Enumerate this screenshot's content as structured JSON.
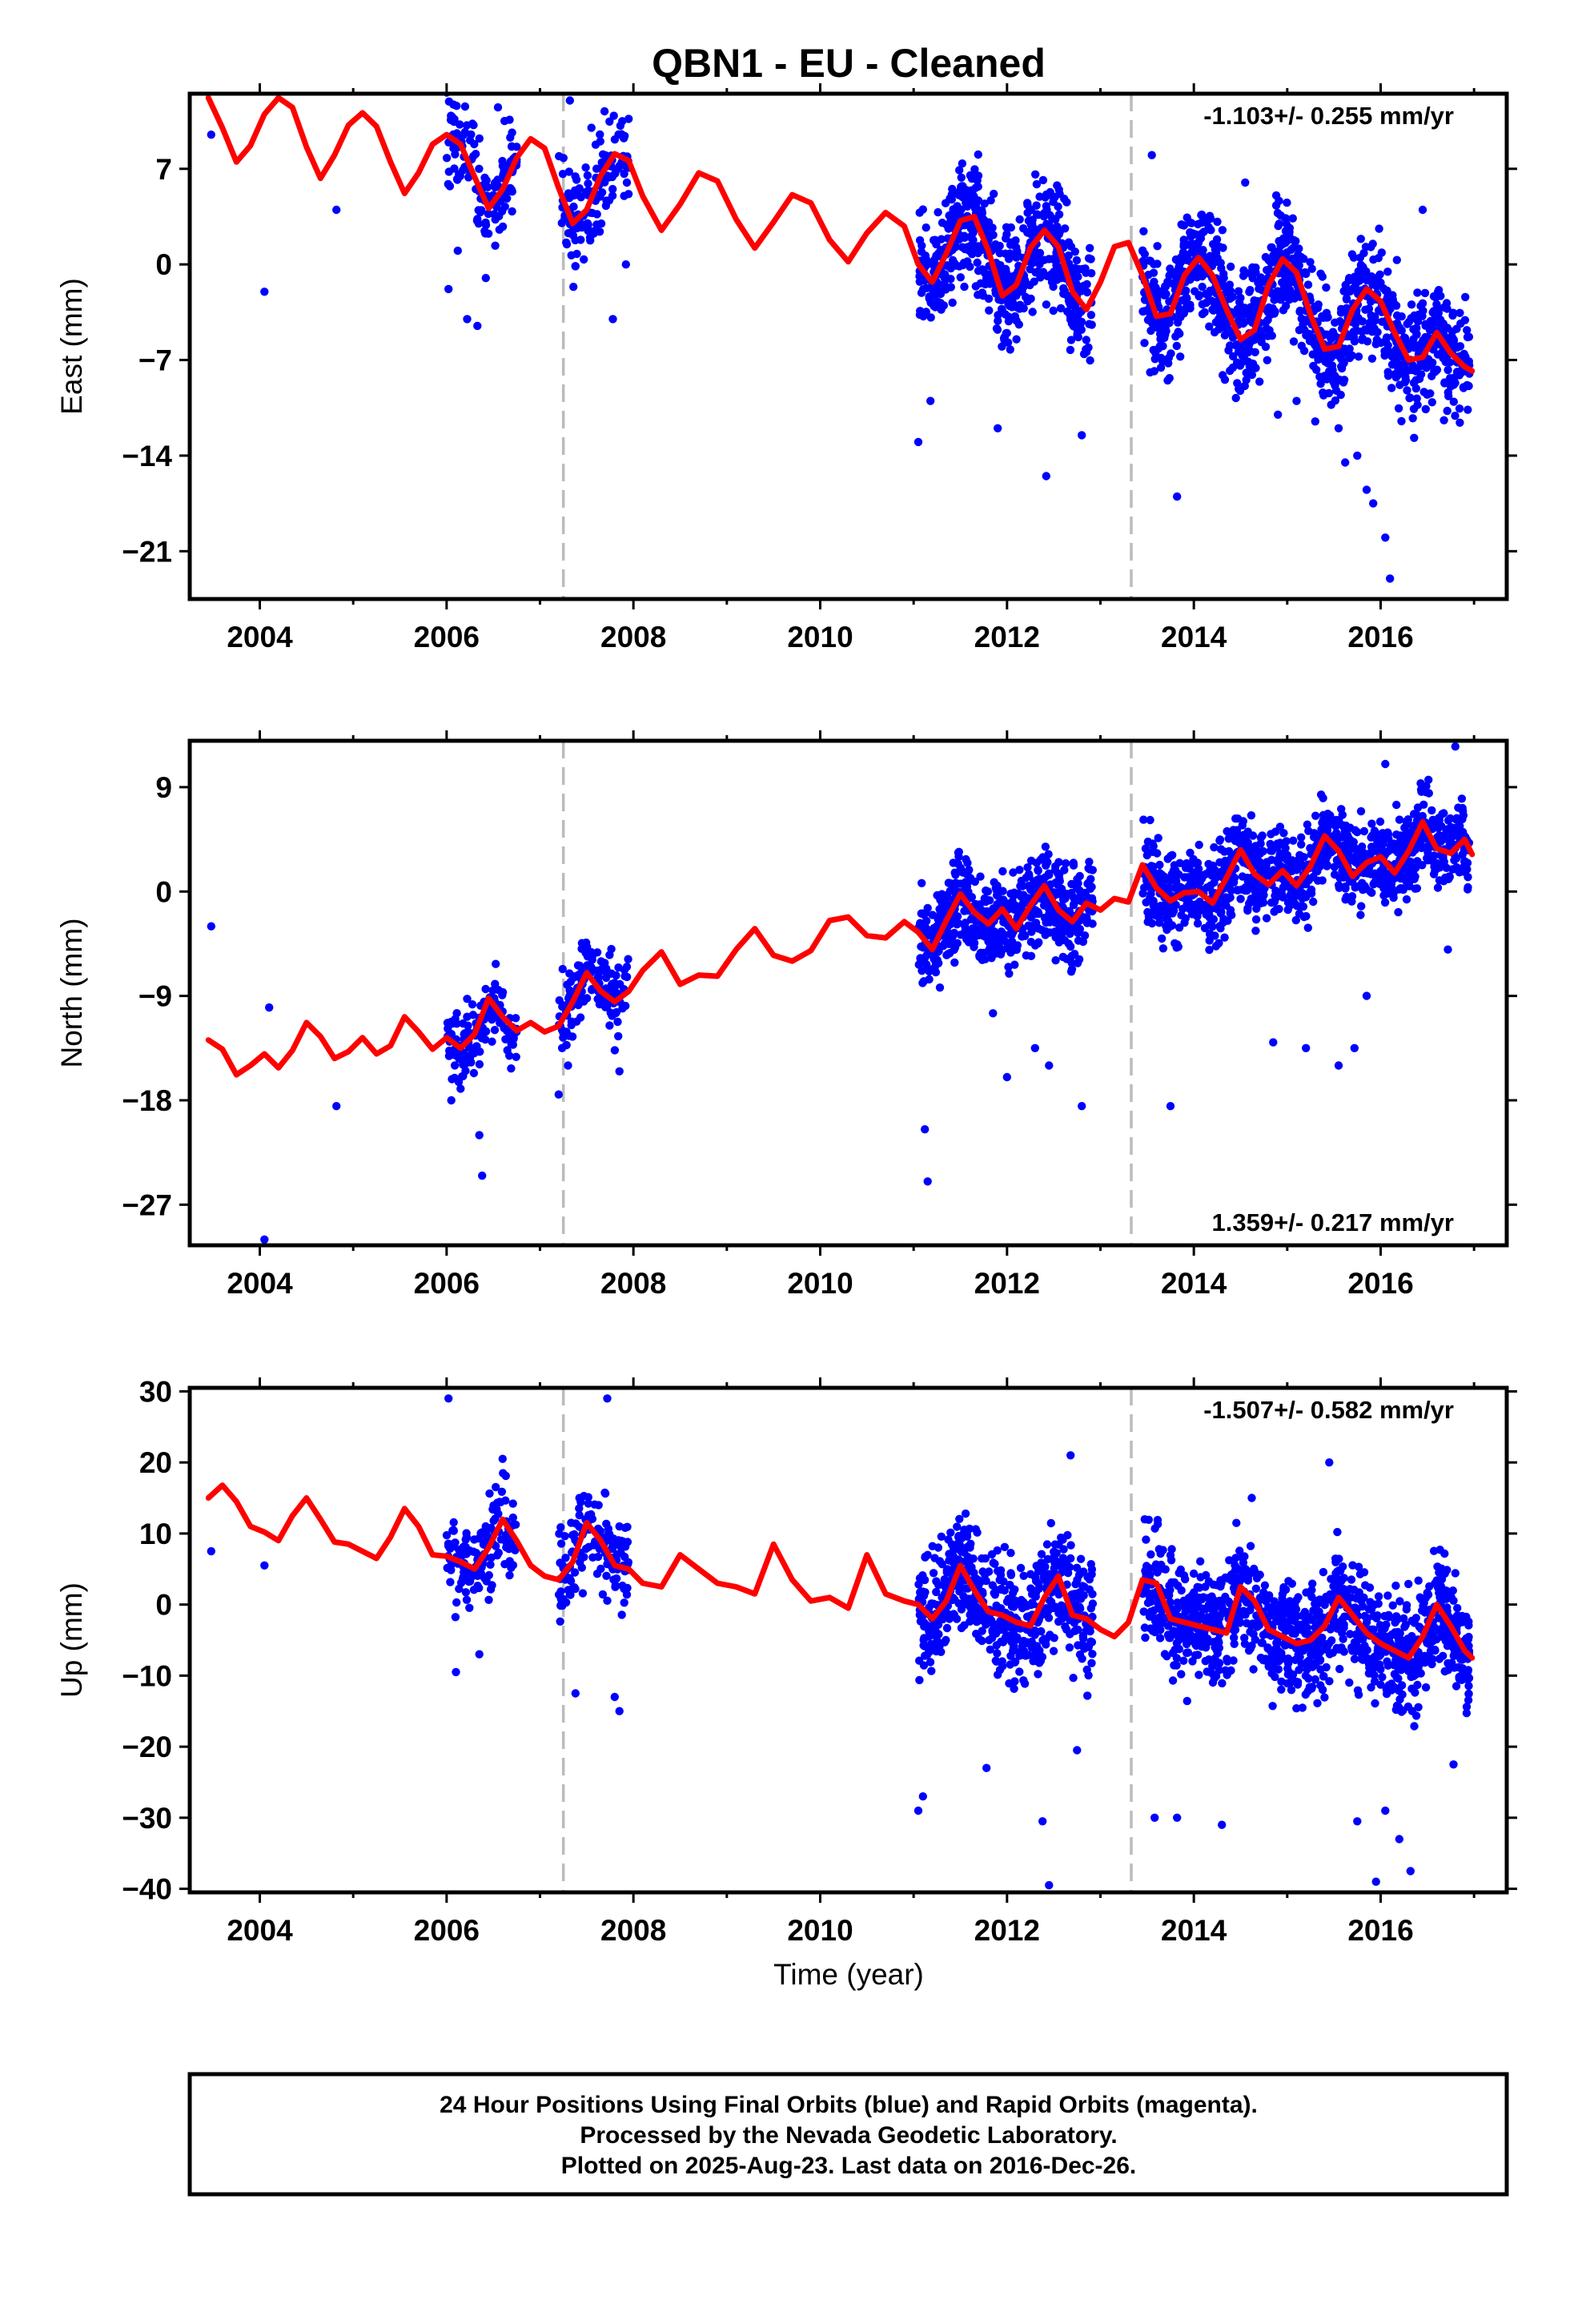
{
  "title": "QBN1  - EU - Cleaned",
  "xlabel": "Time (year)",
  "colors": {
    "points": "#0000ff",
    "model": "#ff0000",
    "steps": "#bbbbbb",
    "frame": "#000000"
  },
  "caption": {
    "line1": "24 Hour Positions Using Final Orbits (blue) and Rapid Orbits (magenta).",
    "line2": "Processed by the Nevada Geodetic Laboratory.",
    "line3": "Plotted on 2025-Aug-23. Last data on 2016-Dec-26."
  },
  "chart_data": [
    {
      "type": "scatter",
      "panel": "east",
      "ylabel": "East (mm)",
      "rate_text": "-1.103+/- 0.255 mm/yr",
      "rate_position": "top-right",
      "xlim": [
        2003.25,
        2017.35
      ],
      "ylim": [
        -24.5,
        12.5
      ],
      "x_ticks": [
        2004,
        2006,
        2008,
        2010,
        2012,
        2014,
        2016
      ],
      "x_tick_labels": [
        "2004",
        "2006",
        "2008",
        "2010",
        "2012",
        "2014",
        "2016"
      ],
      "y_ticks": [
        7,
        0,
        -7,
        -14,
        -21
      ],
      "y_tick_labels": [
        "7",
        "0",
        "−7",
        "−14",
        "−21"
      ],
      "step_epochs": [
        2007.25,
        2013.33
      ],
      "model": {
        "x": [
          2003.45,
          2003.6,
          2003.75,
          2003.9,
          2004.05,
          2004.2,
          2004.35,
          2004.5,
          2004.65,
          2004.8,
          2004.95,
          2005.1,
          2005.25,
          2005.4,
          2005.55,
          2005.7,
          2005.85,
          2006.0,
          2006.15,
          2006.3,
          2006.45,
          2006.6,
          2006.75,
          2006.9,
          2007.05,
          2007.2,
          2007.35,
          2007.5,
          2007.65,
          2007.8,
          2007.95,
          2008.1,
          2008.3,
          2008.5,
          2008.7,
          2008.9,
          2009.1,
          2009.3,
          2009.5,
          2009.7,
          2009.9,
          2010.1,
          2010.3,
          2010.5,
          2010.7,
          2010.9,
          2011.05,
          2011.2,
          2011.35,
          2011.5,
          2011.65,
          2011.8,
          2011.95,
          2012.1,
          2012.25,
          2012.4,
          2012.55,
          2012.7,
          2012.85,
          2013.0,
          2013.15,
          2013.3,
          2013.45,
          2013.6,
          2013.75,
          2013.9,
          2014.05,
          2014.2,
          2014.35,
          2014.5,
          2014.65,
          2014.8,
          2014.95,
          2015.1,
          2015.25,
          2015.4,
          2015.55,
          2015.7,
          2015.85,
          2016.0,
          2016.15,
          2016.3,
          2016.45,
          2016.6,
          2016.75,
          2016.9,
          2016.98
        ],
        "y": [
          12.2,
          10.0,
          7.5,
          8.7,
          11.0,
          12.2,
          11.5,
          8.6,
          6.3,
          8.0,
          10.2,
          11.1,
          10.1,
          7.5,
          5.2,
          6.7,
          8.8,
          9.5,
          8.8,
          6.4,
          4.1,
          5.5,
          7.8,
          9.2,
          8.5,
          5.6,
          3.0,
          4.0,
          6.5,
          8.1,
          7.6,
          5.0,
          2.5,
          4.4,
          6.7,
          6.1,
          3.3,
          1.2,
          3.1,
          5.1,
          4.5,
          1.8,
          0.2,
          2.3,
          3.8,
          2.8,
          0.0,
          -1.3,
          0.8,
          3.2,
          3.5,
          1.0,
          -2.3,
          -1.5,
          1.2,
          2.5,
          1.3,
          -2.0,
          -3.3,
          -1.3,
          1.3,
          1.6,
          -0.8,
          -3.8,
          -3.6,
          -0.8,
          0.5,
          -0.8,
          -3.3,
          -5.5,
          -4.8,
          -1.5,
          0.4,
          -0.6,
          -3.7,
          -6.2,
          -6.0,
          -3.3,
          -1.8,
          -2.7,
          -5.0,
          -7.0,
          -6.8,
          -5.0,
          -6.5,
          -7.5,
          -7.8
        ]
      },
      "outliers": {
        "x": [
          2003.48,
          2004.05,
          2004.82,
          2006.02,
          2006.12,
          2006.22,
          2006.33,
          2006.42,
          2006.55,
          2006.62,
          2007.32,
          2007.55,
          2007.78,
          2007.92,
          2011.05,
          2011.18,
          2011.9,
          2012.42,
          2012.8,
          2013.55,
          2013.72,
          2013.82,
          2014.55,
          2014.9,
          2015.1,
          2015.3,
          2015.55,
          2015.62,
          2015.75,
          2015.85,
          2015.92,
          2016.05,
          2016.1,
          2016.45
        ],
        "y": [
          9.5,
          -2.0,
          4.0,
          -1.8,
          1.0,
          -4.0,
          -4.5,
          -1.0,
          11.5,
          10.5,
          12.0,
          10.0,
          -4.0,
          0.0,
          -13.0,
          -10.0,
          -12.0,
          -15.5,
          -12.5,
          8.0,
          -8.5,
          -17.0,
          6.0,
          -11.0,
          -10.0,
          -11.5,
          -12.0,
          -14.5,
          -14.0,
          -16.5,
          -17.5,
          -20.0,
          -23.0,
          4.0
        ]
      },
      "clusters": [
        {
          "x_range": [
            2006.0,
            2006.75
          ],
          "center": "model",
          "spread": 2.2,
          "n": 140
        },
        {
          "x_range": [
            2007.2,
            2007.95
          ],
          "center": "model",
          "spread": 2.2,
          "n": 140
        },
        {
          "x_range": [
            2011.05,
            2012.92
          ],
          "center": "model",
          "spread": 2.6,
          "n": 620
        },
        {
          "x_range": [
            2013.45,
            2016.95
          ],
          "center": "model",
          "spread": 2.7,
          "n": 1100
        }
      ]
    },
    {
      "type": "scatter",
      "panel": "north",
      "ylabel": "North (mm)",
      "rate_text": "1.359+/- 0.217 mm/yr",
      "rate_position": "bottom-right",
      "xlim": [
        2003.25,
        2017.35
      ],
      "ylim": [
        -30.5,
        13.0
      ],
      "x_ticks": [
        2004,
        2006,
        2008,
        2010,
        2012,
        2014,
        2016
      ],
      "x_tick_labels": [
        "2004",
        "2006",
        "2008",
        "2010",
        "2012",
        "2014",
        "2016"
      ],
      "y_ticks": [
        9,
        0,
        -9,
        -18,
        -27
      ],
      "y_tick_labels": [
        "9",
        "0",
        "−9",
        "−18",
        "−27"
      ],
      "step_epochs": [
        2007.25,
        2013.33
      ],
      "model": {
        "x": [
          2003.45,
          2003.6,
          2003.75,
          2003.9,
          2004.05,
          2004.2,
          2004.35,
          2004.5,
          2004.65,
          2004.8,
          2004.95,
          2005.1,
          2005.25,
          2005.4,
          2005.55,
          2005.7,
          2005.85,
          2006.0,
          2006.15,
          2006.3,
          2006.45,
          2006.6,
          2006.75,
          2006.9,
          2007.05,
          2007.2,
          2007.35,
          2007.5,
          2007.65,
          2007.8,
          2007.95,
          2008.1,
          2008.3,
          2008.5,
          2008.7,
          2008.9,
          2009.1,
          2009.3,
          2009.5,
          2009.7,
          2009.9,
          2010.1,
          2010.3,
          2010.5,
          2010.7,
          2010.9,
          2011.05,
          2011.2,
          2011.35,
          2011.5,
          2011.65,
          2011.8,
          2011.95,
          2012.1,
          2012.25,
          2012.4,
          2012.55,
          2012.7,
          2012.85,
          2013.0,
          2013.15,
          2013.3,
          2013.45,
          2013.6,
          2013.75,
          2013.9,
          2014.05,
          2014.2,
          2014.35,
          2014.5,
          2014.65,
          2014.8,
          2014.95,
          2015.1,
          2015.25,
          2015.4,
          2015.55,
          2015.7,
          2015.85,
          2016.0,
          2016.15,
          2016.3,
          2016.45,
          2016.6,
          2016.75,
          2016.9,
          2016.98
        ],
        "y": [
          -12.8,
          -13.6,
          -15.8,
          -15.0,
          -14.0,
          -15.2,
          -13.7,
          -11.3,
          -12.5,
          -14.4,
          -13.8,
          -12.6,
          -14.0,
          -13.3,
          -10.8,
          -12.1,
          -13.6,
          -12.6,
          -13.5,
          -12.3,
          -9.2,
          -10.8,
          -12.0,
          -11.3,
          -12.1,
          -11.6,
          -9.5,
          -7.0,
          -8.6,
          -9.5,
          -8.6,
          -6.8,
          -5.2,
          -8.0,
          -7.2,
          -7.3,
          -5.0,
          -3.2,
          -5.5,
          -6.0,
          -5.1,
          -2.5,
          -2.2,
          -3.8,
          -4.0,
          -2.6,
          -3.5,
          -5.0,
          -2.5,
          -0.2,
          -1.8,
          -2.8,
          -1.5,
          -3.2,
          -1.2,
          0.5,
          -1.6,
          -2.6,
          -1.0,
          -1.6,
          -0.6,
          -0.9,
          2.3,
          0.3,
          -0.8,
          -0.1,
          0.0,
          -1.0,
          1.2,
          3.6,
          1.5,
          0.6,
          1.8,
          0.5,
          2.2,
          4.8,
          3.5,
          1.3,
          2.5,
          3.0,
          1.6,
          3.5,
          6.0,
          3.7,
          3.3,
          4.5,
          3.2
        ]
      },
      "outliers": {
        "x": [
          2003.48,
          2004.05,
          2004.1,
          2004.82,
          2006.05,
          2006.15,
          2006.35,
          2006.38,
          2007.2,
          2007.3,
          2007.85,
          2011.12,
          2011.15,
          2011.85,
          2012.0,
          2012.3,
          2012.45,
          2012.8,
          2013.75,
          2014.85,
          2015.2,
          2015.55,
          2015.72,
          2015.85,
          2016.05,
          2016.72,
          2016.8
        ],
        "y": [
          -3.0,
          -30.0,
          -10.0,
          -18.5,
          -18.0,
          -17.0,
          -21.0,
          -24.5,
          -17.5,
          -15.0,
          -15.5,
          -20.5,
          -25.0,
          -10.5,
          -16.0,
          -13.5,
          -15.0,
          -18.5,
          -18.5,
          -13.0,
          -13.5,
          -15.0,
          -13.5,
          -9.0,
          11.0,
          -5.0,
          12.5
        ]
      },
      "clusters": [
        {
          "x_range": [
            2006.0,
            2006.75
          ],
          "center": "model",
          "spread": 2.0,
          "n": 140
        },
        {
          "x_range": [
            2007.2,
            2007.95
          ],
          "center": "model",
          "spread": 2.1,
          "n": 140
        },
        {
          "x_range": [
            2011.05,
            2012.92
          ],
          "center": "model",
          "spread": 2.4,
          "n": 620
        },
        {
          "x_range": [
            2013.45,
            2016.95
          ],
          "center": "model",
          "spread": 2.4,
          "n": 1100
        }
      ]
    },
    {
      "type": "scatter",
      "panel": "up",
      "ylabel": "Up (mm)",
      "rate_text": "-1.507+/- 0.582 mm/yr",
      "rate_position": "top-right",
      "xlim": [
        2003.25,
        2017.35
      ],
      "ylim": [
        -40.5,
        30.5
      ],
      "x_ticks": [
        2004,
        2006,
        2008,
        2010,
        2012,
        2014,
        2016
      ],
      "x_tick_labels": [
        "2004",
        "2006",
        "2008",
        "2010",
        "2012",
        "2014",
        "2016"
      ],
      "y_ticks": [
        30,
        20,
        10,
        0,
        -10,
        -20,
        -30,
        -40
      ],
      "y_tick_labels": [
        "30",
        "20",
        "10",
        "0",
        "−10",
        "−20",
        "−30",
        "−40"
      ],
      "step_epochs": [
        2007.25,
        2013.33
      ],
      "model": {
        "x": [
          2003.45,
          2003.6,
          2003.75,
          2003.9,
          2004.05,
          2004.2,
          2004.35,
          2004.5,
          2004.65,
          2004.8,
          2004.95,
          2005.1,
          2005.25,
          2005.4,
          2005.55,
          2005.7,
          2005.85,
          2006.0,
          2006.15,
          2006.3,
          2006.45,
          2006.6,
          2006.75,
          2006.9,
          2007.05,
          2007.2,
          2007.35,
          2007.5,
          2007.65,
          2007.8,
          2007.95,
          2008.1,
          2008.3,
          2008.5,
          2008.7,
          2008.9,
          2009.1,
          2009.3,
          2009.5,
          2009.7,
          2009.9,
          2010.1,
          2010.3,
          2010.5,
          2010.7,
          2010.9,
          2011.05,
          2011.2,
          2011.35,
          2011.5,
          2011.65,
          2011.8,
          2011.95,
          2012.1,
          2012.25,
          2012.4,
          2012.55,
          2012.7,
          2012.85,
          2013.0,
          2013.15,
          2013.3,
          2013.45,
          2013.6,
          2013.75,
          2013.9,
          2014.05,
          2014.2,
          2014.35,
          2014.5,
          2014.65,
          2014.8,
          2014.95,
          2015.1,
          2015.25,
          2015.4,
          2015.55,
          2015.7,
          2015.85,
          2016.0,
          2016.15,
          2016.3,
          2016.45,
          2016.6,
          2016.75,
          2016.9,
          2016.98
        ],
        "y": [
          15.0,
          16.8,
          14.5,
          11.0,
          10.2,
          9.0,
          12.5,
          15.0,
          12.0,
          8.8,
          8.5,
          7.5,
          6.5,
          9.5,
          13.5,
          11.0,
          7.0,
          6.8,
          6.0,
          5.0,
          8.0,
          12.0,
          9.0,
          5.5,
          4.0,
          3.5,
          6.0,
          11.5,
          9.0,
          5.5,
          5.0,
          3.0,
          2.5,
          7.0,
          5.0,
          3.0,
          2.5,
          1.5,
          8.5,
          3.5,
          0.5,
          1.0,
          -0.5,
          7.0,
          1.5,
          0.5,
          0.0,
          -2.0,
          0.5,
          5.5,
          2.0,
          -1.0,
          -1.5,
          -2.5,
          -3.0,
          1.0,
          4.0,
          -1.5,
          -2.0,
          -3.5,
          -4.5,
          -2.5,
          3.5,
          3.0,
          -2.0,
          -2.5,
          -3.0,
          -3.5,
          -4.0,
          2.5,
          0.5,
          -3.5,
          -4.5,
          -5.5,
          -5.0,
          -3.0,
          1.0,
          -1.5,
          -4.0,
          -5.5,
          -6.5,
          -7.5,
          -4.5,
          0.0,
          -3.0,
          -6.5,
          -7.5
        ]
      },
      "outliers": {
        "x": [
          2003.48,
          2004.05,
          2006.02,
          2006.1,
          2006.35,
          2006.6,
          2007.38,
          2007.72,
          2007.8,
          2007.85,
          2011.05,
          2011.1,
          2011.78,
          2012.38,
          2012.45,
          2012.68,
          2012.75,
          2013.58,
          2013.82,
          2014.3,
          2014.62,
          2015.45,
          2015.75,
          2015.95,
          2016.05,
          2016.2,
          2016.32,
          2016.78
        ],
        "y": [
          7.5,
          5.5,
          29.0,
          -9.5,
          -7.0,
          20.5,
          -12.5,
          29.0,
          -13.0,
          -15.0,
          -29.0,
          -27.0,
          -23.0,
          -30.5,
          -39.5,
          21.0,
          -20.5,
          -30.0,
          -30.0,
          -31.0,
          15.0,
          20.0,
          -30.5,
          -39.0,
          -29.0,
          -33.0,
          -37.5,
          -22.5
        ]
      },
      "clusters": [
        {
          "x_range": [
            2006.0,
            2006.75
          ],
          "center": "model",
          "spread": 4.0,
          "n": 140
        },
        {
          "x_range": [
            2007.2,
            2007.95
          ],
          "center": "model",
          "spread": 4.2,
          "n": 140
        },
        {
          "x_range": [
            2011.05,
            2012.92
          ],
          "center": "model",
          "spread": 5.0,
          "n": 620
        },
        {
          "x_range": [
            2013.45,
            2016.95
          ],
          "center": "model",
          "spread": 5.0,
          "n": 1100
        }
      ]
    }
  ]
}
